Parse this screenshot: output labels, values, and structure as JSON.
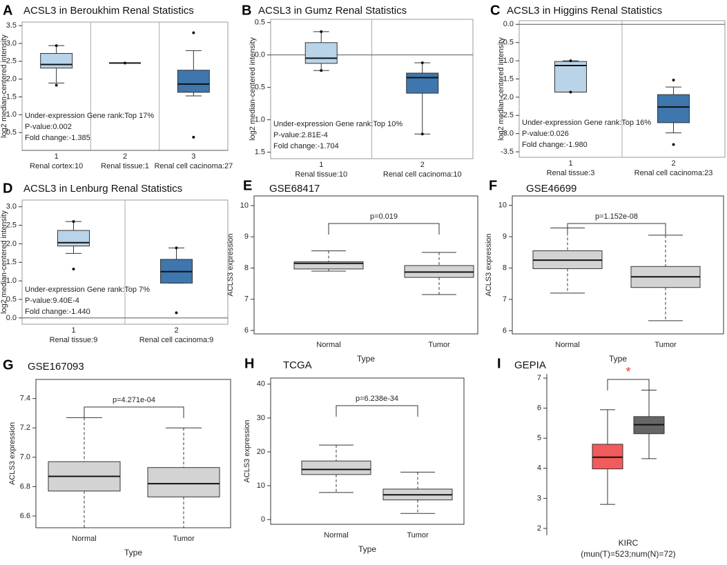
{
  "chart_data": [
    {
      "panel": "A",
      "type": "box",
      "title": "ACSL3 in Beroukhim Renal Statistics",
      "ylabel": "log2 median-centered intensity",
      "group_ids": [
        1,
        2,
        3
      ],
      "categories": [
        "Renal cortex:10",
        "Renal tissue:1",
        "Renal cell cacinoma:27"
      ],
      "ylim": [
        0,
        3.6
      ],
      "yticks": [
        0.5,
        {
          "value": 1,
          "label": "1.0"
        },
        1.5,
        {
          "value": 2,
          "label": "2.0"
        },
        2.5,
        {
          "value": 3,
          "label": "3.0"
        },
        3.5
      ],
      "annotations": [
        "Under-expression Gene rank:Top 17%",
        "P-value:0.002",
        "Fold change:-1.385"
      ],
      "boxes": [
        {
          "color": "#b9d3e8",
          "whisker_high": 2.94,
          "q3": 2.72,
          "median": 2.41,
          "q1": 2.31,
          "whisker_low": 1.89,
          "outliers": [
            2.94,
            1.83
          ]
        },
        {
          "color": "#b9d3e8",
          "whisker_high": 2.45,
          "q3": 2.45,
          "median": 2.45,
          "q1": 2.45,
          "whisker_low": 2.45,
          "outliers": [
            2.45
          ]
        },
        {
          "color": "#3f76ad",
          "whisker_high": 2.8,
          "q3": 2.25,
          "median": 1.86,
          "q1": 1.63,
          "whisker_low": 1.53,
          "outliers": [
            3.3,
            0.37
          ]
        }
      ]
    },
    {
      "panel": "B",
      "type": "box",
      "title": "ACSL3 in Gumz Renal Statistics",
      "ylabel": "log2 median-centered intensity",
      "group_ids": [
        1,
        2
      ],
      "categories": [
        "Renal tissue:10",
        "Renal cell cacinoma:10"
      ],
      "ylim": [
        -1.6,
        0.55
      ],
      "yticks": [
        0.5,
        {
          "value": 0,
          "label": "0.0"
        },
        {
          "value": -0.5,
          "label": "0.5"
        },
        {
          "value": -1,
          "label": "1.0"
        },
        {
          "value": -1.5,
          "label": "1.5"
        }
      ],
      "annotations": [
        "Under-expression Gene rank:Top 10%",
        "P-value:2.81E-4",
        "Fold change:-1.704"
      ],
      "boxes": [
        {
          "color": "#b9d3e8",
          "whisker_high": 0.36,
          "q3": 0.19,
          "median": -0.05,
          "q1": -0.13,
          "whisker_low": -0.24,
          "outliers": [
            0.36,
            -0.24
          ]
        },
        {
          "color": "#3f76ad",
          "whisker_high": -0.12,
          "q3": -0.28,
          "median": -0.35,
          "q1": -0.59,
          "whisker_low": -1.22,
          "outliers": [
            -0.12,
            -1.22
          ]
        }
      ]
    },
    {
      "panel": "C",
      "type": "box",
      "title": "ACSL3 in Higgins Renal Statistics",
      "ylabel": "log2 median-centered intensity",
      "group_ids": [
        1,
        2
      ],
      "categories": [
        "Renal tissue:3",
        "Renal cell cacinoma:23"
      ],
      "ylim": [
        -3.65,
        0.1
      ],
      "yticks": [
        {
          "value": 0,
          "label": "0.0"
        },
        -0.5,
        {
          "value": -1,
          "label": "-1.0"
        },
        -1.5,
        {
          "value": -2,
          "label": "-2.0"
        },
        -2.5,
        {
          "value": -3,
          "label": "-3.0"
        },
        -3.5
      ],
      "annotations": [
        "Under-expression Gene rank:Top 16%",
        "P-value:0.026",
        "Fold change:-1.980"
      ],
      "boxes": [
        {
          "color": "#b9d3e8",
          "whisker_high": -1.0,
          "q3": -1.02,
          "median": -1.13,
          "q1": -1.86,
          "whisker_low": -1.86,
          "outliers": [
            -1.0,
            -1.86
          ]
        },
        {
          "color": "#3f76ad",
          "whisker_high": -1.72,
          "q3": -1.93,
          "median": -2.27,
          "q1": -2.7,
          "whisker_low": -2.98,
          "outliers": [
            -1.53,
            -3.3
          ]
        }
      ]
    },
    {
      "panel": "D",
      "type": "box",
      "title": "ACSL3 in Lenburg Renal Statistics",
      "ylabel": "log2 median-centered intensity",
      "group_ids": [
        1,
        2
      ],
      "categories": [
        "Renal tissue:9",
        "Renal cell cacinoma:9"
      ],
      "ylim": [
        -0.17,
        3.18
      ],
      "yticks": [
        {
          "value": 0,
          "label": "0.0"
        },
        0.5,
        {
          "value": 1,
          "label": "1.0"
        },
        1.5,
        {
          "value": 2,
          "label": "2.0"
        },
        2.5,
        {
          "value": 3,
          "label": "3.0"
        }
      ],
      "annotations": [
        "Under-expression Gene rank:Top 7%",
        "P-value:9.40E-4",
        "Fold change:-1.440"
      ],
      "boxes": [
        {
          "color": "#b9d3e8",
          "whisker_high": 2.6,
          "q3": 2.36,
          "median": 2.03,
          "q1": 1.94,
          "whisker_low": 1.74,
          "outliers": [
            2.6,
            1.32
          ]
        },
        {
          "color": "#3f76ad",
          "whisker_high": 1.89,
          "q3": 1.58,
          "median": 1.25,
          "q1": 0.94,
          "whisker_low": 0.94,
          "outliers": [
            1.89,
            0.14
          ]
        }
      ]
    },
    {
      "panel": "E",
      "type": "box",
      "title": "GSE68417",
      "ylabel": "ACLS3 expression",
      "xlabel": "Type",
      "categories": [
        "Normal",
        "Tumor"
      ],
      "ylim": [
        5.89,
        10.31
      ],
      "yticks": [
        6,
        7,
        8,
        9,
        10
      ],
      "annotation": "p=0.019",
      "boxes": [
        {
          "color": "#d3d3d3",
          "whisker_high": 8.55,
          "q3": 8.2,
          "median": 8.15,
          "q1": 7.97,
          "whisker_low": 7.9,
          "outliers": []
        },
        {
          "color": "#d3d3d3",
          "whisker_high": 8.5,
          "q3": 8.08,
          "median": 7.87,
          "q1": 7.7,
          "whisker_low": 7.15,
          "outliers": []
        }
      ]
    },
    {
      "panel": "F",
      "type": "box",
      "title": "GSE46699",
      "ylabel": "ACLS3 expression",
      "xlabel": "Type",
      "categories": [
        "Normal",
        "Tumor"
      ],
      "ylim": [
        5.9,
        10.3
      ],
      "yticks": [
        6,
        7,
        8,
        9,
        10
      ],
      "annotation": "p=1.152e-08",
      "boxes": [
        {
          "color": "#d3d3d3",
          "whisker_high": 9.28,
          "q3": 8.55,
          "median": 8.25,
          "q1": 7.98,
          "whisker_low": 7.2,
          "outliers": []
        },
        {
          "color": "#d3d3d3",
          "whisker_high": 9.05,
          "q3": 8.05,
          "median": 7.72,
          "q1": 7.38,
          "whisker_low": 6.32,
          "outliers": []
        }
      ]
    },
    {
      "panel": "G",
      "type": "box",
      "title": "GSE167093",
      "ylabel": "ACLS3 expression",
      "xlabel": "Type",
      "categories": [
        "Normal",
        "Tumor"
      ],
      "ylim": [
        6.52,
        7.53
      ],
      "yticks": [
        6.6,
        6.8,
        {
          "value": 7,
          "label": "7.0"
        },
        7.2,
        7.4
      ],
      "annotation": "p=4.271e-04",
      "boxes": [
        {
          "color": "#d3d3d3",
          "whisker_high": 7.27,
          "q3": 6.97,
          "median": 6.87,
          "q1": 6.77,
          "whisker_low": 6.52,
          "outliers": []
        },
        {
          "color": "#d3d3d3",
          "whisker_high": 7.2,
          "q3": 6.93,
          "median": 6.82,
          "q1": 6.73,
          "whisker_low": 6.52,
          "outliers": []
        }
      ]
    },
    {
      "panel": "H",
      "type": "box",
      "title": "TCGA",
      "ylabel": "ACLS3 expression",
      "xlabel": "Type",
      "categories": [
        "Normal",
        "Tumor"
      ],
      "ylim": [
        -1.4,
        41.8
      ],
      "yticks": [
        0,
        10,
        20,
        30,
        40
      ],
      "annotation": "p=6.238e-34",
      "boxes": [
        {
          "color": "#d3d3d3",
          "whisker_high": 22,
          "q3": 17.3,
          "median": 14.8,
          "q1": 13.3,
          "whisker_low": 8,
          "outliers": []
        },
        {
          "color": "#d3d3d3",
          "whisker_high": 14,
          "q3": 9,
          "median": 7.3,
          "q1": 5.8,
          "whisker_low": 1.8,
          "outliers": []
        }
      ]
    },
    {
      "panel": "I",
      "type": "box",
      "title": "GEPIA",
      "xlabel": "KIRC",
      "xlabel_note": "(mun(T)=523;num(N)=72)",
      "ylim": [
        1.77,
        7.14
      ],
      "yticks": [
        2,
        3,
        4,
        5,
        6,
        7
      ],
      "annotation": "*",
      "boxes": [
        {
          "color": "#f25b5b",
          "whisker_high": 5.95,
          "q3": 4.8,
          "median": 4.37,
          "q1": 3.98,
          "whisker_low": 2.8,
          "outliers": []
        },
        {
          "color": "#666666",
          "whisker_high": 6.6,
          "q3": 5.72,
          "median": 5.45,
          "q1": 5.15,
          "whisker_low": 4.32,
          "outliers": []
        }
      ]
    }
  ]
}
